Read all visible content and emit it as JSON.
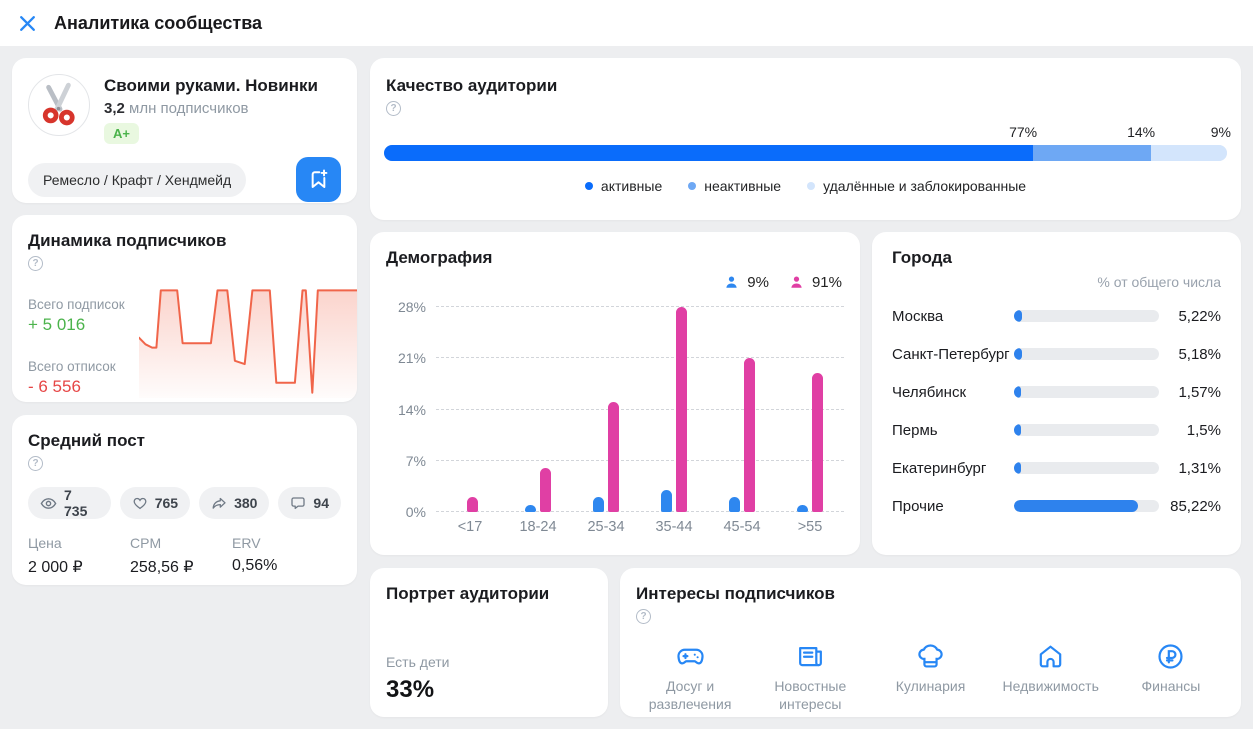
{
  "header": {
    "title": "Аналитика сообщества"
  },
  "community": {
    "name": "Своими руками. Новинки",
    "subscribers_bold": "3,2",
    "subscribers_rest": " млн подписчиков",
    "grade": "A+",
    "category": "Ремесло / Крафт / Хендмейд"
  },
  "dynamics": {
    "title": "Динамика подписчиков",
    "help": "?",
    "subscribed_label": "Всего подписок",
    "subscribed_value": "+ 5 016",
    "unsubscribed_label": "Всего отписок",
    "unsubscribed_value": "- 6 556",
    "chart_data": {
      "type": "line",
      "color": "#f0654a",
      "points": [
        [
          0,
          47
        ],
        [
          3,
          53
        ],
        [
          6,
          56
        ],
        [
          8,
          56
        ],
        [
          10,
          4
        ],
        [
          17.5,
          4
        ],
        [
          20,
          52
        ],
        [
          33,
          52
        ],
        [
          36,
          4
        ],
        [
          40.5,
          4
        ],
        [
          44,
          68
        ],
        [
          48.5,
          71
        ],
        [
          52,
          4
        ],
        [
          60,
          4
        ],
        [
          63,
          88
        ],
        [
          71.5,
          88
        ],
        [
          75,
          4
        ],
        [
          76.5,
          4
        ],
        [
          79.5,
          97
        ],
        [
          82,
          4
        ],
        [
          100,
          4
        ]
      ]
    }
  },
  "avg_post": {
    "title": "Средний пост",
    "help": "?",
    "metrics": [
      {
        "name": "views-metric",
        "icon": "eye-icon",
        "value": "7 735"
      },
      {
        "name": "likes-metric",
        "icon": "heart-icon",
        "value": "765"
      },
      {
        "name": "shares-metric",
        "icon": "share-arrow-icon",
        "value": "380"
      },
      {
        "name": "comments-metric",
        "icon": "comment-bubble-icon",
        "value": "94"
      }
    ],
    "stats": [
      {
        "label": "Цена",
        "value": "2 000 ₽"
      },
      {
        "label": "CPM",
        "value": "258,56 ₽"
      },
      {
        "label": "ERV",
        "value": "0,56%"
      }
    ]
  },
  "quality": {
    "title": "Качество аудитории",
    "help": "?",
    "chart_data": {
      "type": "stacked-bar",
      "segments": [
        {
          "key": "active",
          "label": "активные",
          "value": 77,
          "color": "#0a6cfb"
        },
        {
          "key": "inactive",
          "label": "неактивные",
          "value": 14,
          "color": "#6ea8f4"
        },
        {
          "key": "deleted-blocked",
          "label": "удалённые и заблокированные",
          "value": 9,
          "color": "#d3e5fc"
        }
      ]
    }
  },
  "demography": {
    "title": "Демография",
    "male_pct": "9%",
    "female_pct": "91%",
    "chart_data": {
      "type": "bar",
      "categories": [
        "<17",
        "18-24",
        "25-34",
        "35-44",
        "45-54",
        ">55"
      ],
      "series": [
        {
          "key": "male",
          "name": "мужчины",
          "color": "#2e87ef",
          "total_pct": 9,
          "values": [
            0,
            1,
            2,
            3,
            2,
            1
          ]
        },
        {
          "key": "female",
          "name": "женщины",
          "color": "#e03fa4",
          "total_pct": 91,
          "values": [
            2,
            6,
            15,
            28,
            21,
            19
          ]
        }
      ],
      "yticks": [
        0,
        7,
        14,
        21,
        28
      ],
      "ylim": [
        0,
        28
      ],
      "ylabel": "%",
      "grid": "dashed"
    }
  },
  "cities": {
    "title": "Города",
    "subtitle": "% от общего числа",
    "chart_data": {
      "type": "bar",
      "rows": [
        {
          "city": "Москва",
          "value": "5,22%",
          "pct": 5.22
        },
        {
          "city": "Санкт-Петербург",
          "value": "5,18%",
          "pct": 5.18
        },
        {
          "city": "Челябинск",
          "value": "1,57%",
          "pct": 1.57
        },
        {
          "city": "Пермь",
          "value": "1,5%",
          "pct": 1.5
        },
        {
          "city": "Екатеринбург",
          "value": "1,31%",
          "pct": 1.31
        },
        {
          "city": "Прочие",
          "value": "85,22%",
          "pct": 85.22
        }
      ]
    }
  },
  "portrait": {
    "title": "Портрет аудитории",
    "label": "Есть дети",
    "value": "33%"
  },
  "interests": {
    "title": "Интересы подписчиков",
    "help": "?",
    "items": [
      {
        "icon": "gamepad-icon",
        "label": "Досуг и развлечения"
      },
      {
        "icon": "newspaper-icon",
        "label": "Новостные интересы"
      },
      {
        "icon": "chef-hat-icon",
        "label": "Кулинария"
      },
      {
        "icon": "house-icon",
        "label": "Недвижимость"
      },
      {
        "icon": "ruble-icon",
        "label": "Финансы"
      }
    ]
  },
  "colors": {
    "accent_blue": "#2787f5",
    "bright_blue": "#0a6cfb",
    "mid_blue": "#6ea8f4",
    "light_blue": "#d3e5fc",
    "male_blue": "#2e87ef",
    "female_pink": "#e03fa4",
    "line_orange": "#f0654a",
    "green": "#4bb34b",
    "red": "#e64646"
  }
}
